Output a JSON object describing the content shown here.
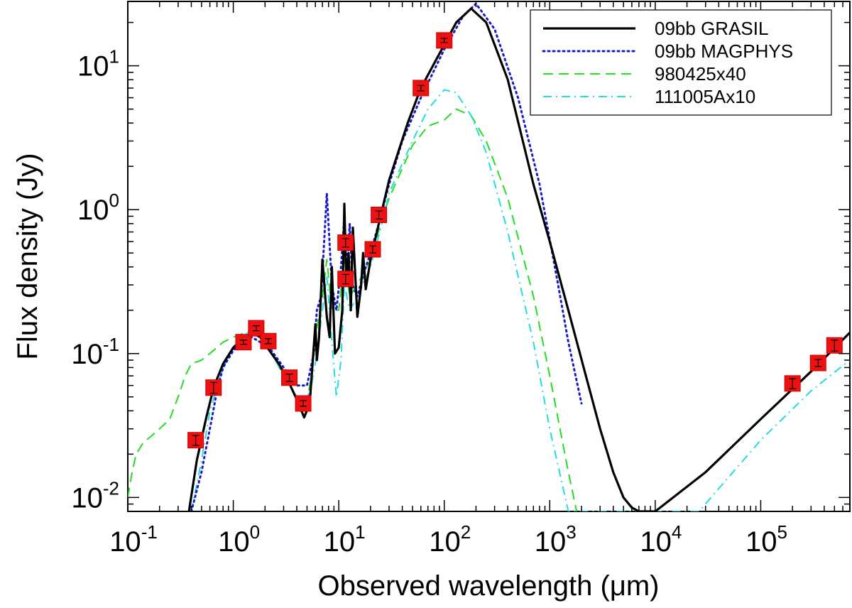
{
  "chart_data": {
    "type": "line",
    "title": "",
    "xlabel": "Observed wavelength (μm)",
    "ylabel": "Flux density (Jy)",
    "xscale": "log",
    "yscale": "log",
    "xlim": [
      0.1,
      700000
    ],
    "ylim": [
      0.008,
      28
    ],
    "grid": false,
    "legend_position": "top-right",
    "x_tick_labels": [
      {
        "base": "10",
        "exp": "-1"
      },
      {
        "base": "10",
        "exp": "0"
      },
      {
        "base": "10",
        "exp": "1"
      },
      {
        "base": "10",
        "exp": "2"
      },
      {
        "base": "10",
        "exp": "3"
      },
      {
        "base": "10",
        "exp": "4"
      },
      {
        "base": "10",
        "exp": "5"
      }
    ],
    "y_tick_labels": [
      {
        "base": "10",
        "exp": "-2"
      },
      {
        "base": "10",
        "exp": "-1"
      },
      {
        "base": "10",
        "exp": "0"
      },
      {
        "base": "10",
        "exp": "1"
      }
    ],
    "series": [
      {
        "name": "09bb GRASIL",
        "color": "#000000",
        "style": "solid",
        "x": [
          0.38,
          0.45,
          0.55,
          0.65,
          0.8,
          1.0,
          1.2,
          1.5,
          1.8,
          2.2,
          2.7,
          3.3,
          4.0,
          4.7,
          5.3,
          6.0,
          6.2,
          6.5,
          7.0,
          7.7,
          8.2,
          8.6,
          9.2,
          10.0,
          10.8,
          11.3,
          11.8,
          12.4,
          13.0,
          13.6,
          15.0,
          16.3,
          17.0,
          18.0,
          20.0,
          24.0,
          30.0,
          45.0,
          60.0,
          100.0,
          130.0,
          180.0,
          250.0,
          400.0,
          700.0,
          1000.0,
          1500.0,
          2200.0,
          3000.0,
          4000.0,
          5000.0,
          6000.0,
          7000.0,
          10000.0,
          30000.0,
          100000.0,
          300000.0,
          700000.0
        ],
        "y": [
          0.008,
          0.018,
          0.035,
          0.058,
          0.085,
          0.11,
          0.125,
          0.14,
          0.13,
          0.105,
          0.085,
          0.065,
          0.048,
          0.036,
          0.045,
          0.16,
          0.09,
          0.13,
          0.45,
          0.18,
          0.13,
          0.4,
          0.1,
          0.11,
          0.2,
          1.1,
          0.3,
          0.5,
          0.2,
          0.75,
          0.18,
          0.3,
          0.5,
          0.28,
          0.45,
          0.8,
          1.6,
          4.0,
          7.0,
          14.0,
          20.0,
          25.0,
          20.0,
          8.0,
          1.5,
          0.6,
          0.2,
          0.07,
          0.03,
          0.015,
          0.01,
          0.0085,
          0.008,
          0.008,
          0.015,
          0.035,
          0.075,
          0.14
        ]
      },
      {
        "name": "09bb MAGPHYS",
        "color": "#1a1acc",
        "style": "dotted",
        "x": [
          0.4,
          0.5,
          0.6,
          0.7,
          0.8,
          1.0,
          1.2,
          1.5,
          1.8,
          2.2,
          3.0,
          4.0,
          5.0,
          5.8,
          6.2,
          6.8,
          7.7,
          8.6,
          9.5,
          10.5,
          11.3,
          12.0,
          12.7,
          13.5,
          15.0,
          17.0,
          20.0,
          25.0,
          30.0,
          40.0,
          60.0,
          100.0,
          150.0,
          200.0,
          300.0,
          500.0,
          800.0,
          1200.0,
          1500.0,
          2000.0
        ],
        "y": [
          0.008,
          0.015,
          0.03,
          0.055,
          0.08,
          0.105,
          0.12,
          0.13,
          0.12,
          0.11,
          0.08,
          0.06,
          0.06,
          0.1,
          0.2,
          0.25,
          1.3,
          0.3,
          0.2,
          0.4,
          0.9,
          0.4,
          0.8,
          0.3,
          0.25,
          0.35,
          0.5,
          0.9,
          1.5,
          3.0,
          6.0,
          13.0,
          22.0,
          27.0,
          18.0,
          6.0,
          1.5,
          0.3,
          0.12,
          0.045
        ]
      },
      {
        "name": "980425x40",
        "color": "#22dd22",
        "style": "dashed",
        "x": [
          0.1,
          0.11,
          0.12,
          0.14,
          0.17,
          0.2,
          0.25,
          0.3,
          0.35,
          0.4,
          0.5,
          0.6,
          0.8,
          1.0,
          1.3,
          1.6,
          2.0,
          2.5,
          3.2,
          4.0,
          4.8,
          5.5,
          6.2,
          7.0,
          7.7,
          8.6,
          10.0,
          11.3,
          12.7,
          15.0,
          20.0,
          25.0,
          30.0,
          50.0,
          70.0,
          100.0,
          130.0,
          180.0,
          250.0,
          400.0,
          700.0,
          1000.0,
          1500.0,
          1800.0
        ],
        "y": [
          0.01,
          0.015,
          0.02,
          0.024,
          0.027,
          0.03,
          0.035,
          0.05,
          0.07,
          0.085,
          0.09,
          0.1,
          0.12,
          0.13,
          0.14,
          0.15,
          0.12,
          0.09,
          0.065,
          0.05,
          0.04,
          0.07,
          0.15,
          0.25,
          0.45,
          0.2,
          0.2,
          0.45,
          0.25,
          0.3,
          0.45,
          0.8,
          1.2,
          2.8,
          3.8,
          4.2,
          5.0,
          4.5,
          3.0,
          1.2,
          0.25,
          0.07,
          0.015,
          0.008
        ]
      },
      {
        "name": "111005Ax10",
        "color": "#22dddd",
        "style": "dashdot",
        "x": [
          0.4,
          0.5,
          0.6,
          0.8,
          1.0,
          1.3,
          1.6,
          2.0,
          2.5,
          3.2,
          4.0,
          4.8,
          5.5,
          6.2,
          7.0,
          7.7,
          8.6,
          9.5,
          10.5,
          11.3,
          12.7,
          15.0,
          20.0,
          25.0,
          30.0,
          50.0,
          70.0,
          100.0,
          130.0,
          180.0,
          250.0,
          400.0,
          700.0,
          1000.0,
          1500.0,
          26000.0,
          100000.0,
          300000.0,
          700000.0
        ],
        "y": [
          0.008,
          0.018,
          0.04,
          0.08,
          0.11,
          0.135,
          0.155,
          0.12,
          0.09,
          0.065,
          0.05,
          0.045,
          0.06,
          0.1,
          0.2,
          0.35,
          0.12,
          0.05,
          0.09,
          0.3,
          0.2,
          0.25,
          0.4,
          0.75,
          1.3,
          3.0,
          5.0,
          6.8,
          6.5,
          4.5,
          2.5,
          0.7,
          0.12,
          0.03,
          0.008,
          0.008,
          0.025,
          0.055,
          0.09
        ]
      }
    ],
    "points": {
      "name": "",
      "color": "#ee1111",
      "x": [
        0.44,
        0.65,
        1.25,
        1.65,
        2.15,
        3.4,
        4.6,
        11.6,
        11.6,
        21.0,
        24.0,
        60.0,
        100.0,
        200000.0,
        350000.0,
        500000.0
      ],
      "y": [
        0.025,
        0.058,
        0.12,
        0.15,
        0.122,
        0.068,
        0.045,
        0.33,
        0.59,
        0.53,
        0.92,
        7.0,
        15.0,
        0.062,
        0.086,
        0.114
      ],
      "err": [
        0.002,
        0.005,
        0.004,
        0.006,
        0.005,
        0.004,
        0.002,
        0.025,
        0.04,
        0.03,
        0.06,
        0.3,
        0.5,
        0.005,
        0.005,
        0.01
      ]
    }
  }
}
